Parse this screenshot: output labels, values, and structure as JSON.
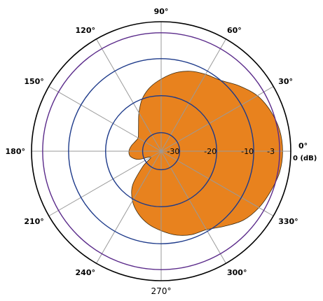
{
  "chart_data": {
    "type": "polar-area",
    "angle_unit": "degrees",
    "unit_label": "0 (dB)",
    "angle_ticks": [
      {
        "angle": 0,
        "label": "0°",
        "style": "bold"
      },
      {
        "angle": 30,
        "label": "30°",
        "style": "bold"
      },
      {
        "angle": 60,
        "label": "60°",
        "style": "bold"
      },
      {
        "angle": 90,
        "label": "90°",
        "style": "bold"
      },
      {
        "angle": 120,
        "label": "120°",
        "style": "bold"
      },
      {
        "angle": 150,
        "label": "150°",
        "style": "bold"
      },
      {
        "angle": 180,
        "label": "180°",
        "style": "bold"
      },
      {
        "angle": 210,
        "label": "210°",
        "style": "bold"
      },
      {
        "angle": 240,
        "label": "240°",
        "style": "bold"
      },
      {
        "angle": 270,
        "label": "270°",
        "style": "plain"
      },
      {
        "angle": 300,
        "label": "300°",
        "style": "bold"
      },
      {
        "angle": 330,
        "label": "330°",
        "style": "bold"
      }
    ],
    "radial_axis": {
      "min_db": -35,
      "max_db": 0
    },
    "rings": [
      {
        "db": -30,
        "label": "-30",
        "color": "#1d3a8a"
      },
      {
        "db": -20,
        "label": "-20",
        "color": "#1d3a8a"
      },
      {
        "db": -10,
        "label": "-10",
        "color": "#1d3a8a"
      },
      {
        "db": -3,
        "label": "-3",
        "color": "#5a2a8a"
      },
      {
        "db": 0,
        "label": "",
        "color": "#000000"
      }
    ],
    "pattern": {
      "fill_color": "#e8821e",
      "points": [
        {
          "angle": 0,
          "db": -2.2
        },
        {
          "angle": 10,
          "db": -2.5
        },
        {
          "angle": 20,
          "db": -3.5
        },
        {
          "angle": 30,
          "db": -5.0
        },
        {
          "angle": 40,
          "db": -7.5
        },
        {
          "angle": 50,
          "db": -10.0
        },
        {
          "angle": 60,
          "db": -11.0
        },
        {
          "angle": 70,
          "db": -12.0
        },
        {
          "angle": 80,
          "db": -13.5
        },
        {
          "angle": 90,
          "db": -15.5
        },
        {
          "angle": 100,
          "db": -17.5
        },
        {
          "angle": 110,
          "db": -20.0
        },
        {
          "angle": 120,
          "db": -23.0
        },
        {
          "angle": 130,
          "db": -25.5
        },
        {
          "angle": 140,
          "db": -27.0
        },
        {
          "angle": 150,
          "db": -27.8
        },
        {
          "angle": 160,
          "db": -27.5
        },
        {
          "angle": 170,
          "db": -26.8
        },
        {
          "angle": 180,
          "db": -26.3
        },
        {
          "angle": 190,
          "db": -26.6
        },
        {
          "angle": 200,
          "db": -28.5
        },
        {
          "angle": 210,
          "db": -31.8
        },
        {
          "angle": 220,
          "db": -28.5
        },
        {
          "angle": 230,
          "db": -23.0
        },
        {
          "angle": 240,
          "db": -19.5
        },
        {
          "angle": 250,
          "db": -17.0
        },
        {
          "angle": 260,
          "db": -15.0
        },
        {
          "angle": 270,
          "db": -13.5
        },
        {
          "angle": 280,
          "db": -12.0
        },
        {
          "angle": 290,
          "db": -11.0
        },
        {
          "angle": 300,
          "db": -10.5
        },
        {
          "angle": 310,
          "db": -8.5
        },
        {
          "angle": 320,
          "db": -6.0
        },
        {
          "angle": 330,
          "db": -4.5
        },
        {
          "angle": 340,
          "db": -3.5
        },
        {
          "angle": 350,
          "db": -2.5
        }
      ]
    },
    "grid": true,
    "legend": "none"
  }
}
